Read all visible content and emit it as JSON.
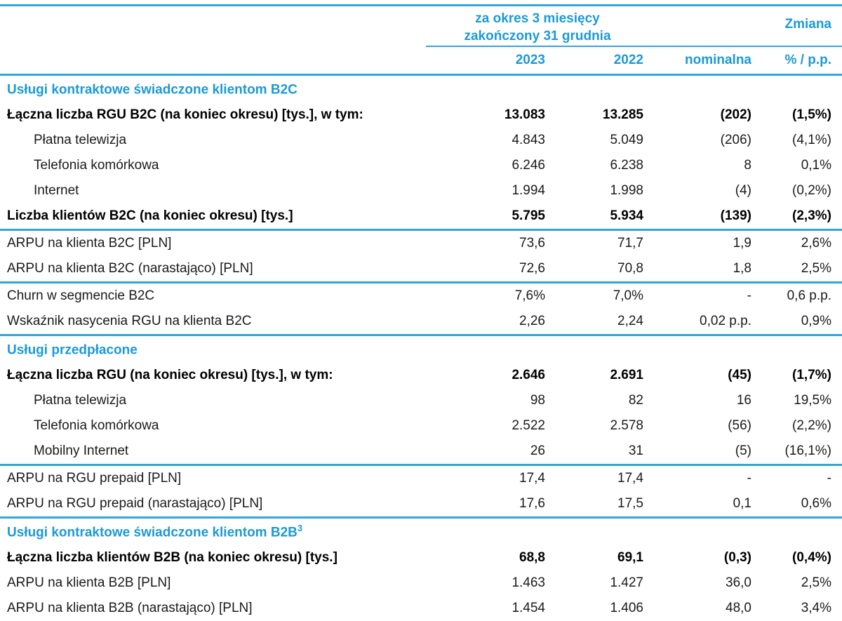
{
  "colors": {
    "accent_blue_text": "#1b9ad7",
    "accent_blue_line": "#2fa6dd",
    "body_text": "#1a1a1a"
  },
  "table": {
    "period_line1": "za okres 3 miesięcy",
    "period_line2": "zakończony 31 grudnia",
    "change_header": "Zmiana",
    "columns": [
      "2023",
      "2022",
      "nominalna",
      "% / p.p."
    ],
    "blocks": [
      {
        "section_title": "Usługi kontraktowe świadczone klientom B2C",
        "title_sup": "",
        "rows": [
          {
            "label": "Łączna liczba RGU B2C (na koniec okresu) [tys.], w tym:",
            "style": "bold",
            "values": [
              "13.083",
              "13.285",
              "(202)",
              "(1,5%)"
            ]
          },
          {
            "label": "Płatna telewizja",
            "style": "indent",
            "values": [
              "4.843",
              "5.049",
              "(206)",
              "(4,1%)"
            ]
          },
          {
            "label": "Telefonia komórkowa",
            "style": "indent",
            "values": [
              "6.246",
              "6.238",
              "8",
              "0,1%"
            ]
          },
          {
            "label": "Internet",
            "style": "indent",
            "values": [
              "1.994",
              "1.998",
              "(4)",
              "(0,2%)"
            ]
          },
          {
            "label": "Liczba klientów B2C (na koniec okresu) [tys.]",
            "style": "bold",
            "values": [
              "5.795",
              "5.934",
              "(139)",
              "(2,3%)"
            ]
          }
        ]
      },
      {
        "section_title": "",
        "title_sup": "",
        "rows": [
          {
            "label": "ARPU na klienta B2C [PLN]",
            "style": "",
            "values": [
              "73,6",
              "71,7",
              "1,9",
              "2,6%"
            ]
          },
          {
            "label": "ARPU na klienta B2C (narastająco) [PLN]",
            "style": "",
            "values": [
              "72,6",
              "70,8",
              "1,8",
              "2,5%"
            ]
          }
        ]
      },
      {
        "section_title": "",
        "title_sup": "",
        "rows": [
          {
            "label": "Churn w segmencie B2C",
            "style": "",
            "values": [
              "7,6%",
              "7,0%",
              "-",
              "0,6 p.p."
            ]
          },
          {
            "label": "Wskaźnik nasycenia RGU na klienta B2C",
            "style": "",
            "values": [
              "2,26",
              "2,24",
              "0,02 p.p.",
              "0,9%"
            ]
          }
        ]
      },
      {
        "section_title": "Usługi przedpłacone",
        "title_sup": "",
        "rows": [
          {
            "label": "Łączna liczba RGU (na koniec okresu) [tys.], w tym:",
            "style": "bold",
            "values": [
              "2.646",
              "2.691",
              "(45)",
              "(1,7%)"
            ]
          },
          {
            "label": "Płatna telewizja",
            "style": "indent",
            "values": [
              "98",
              "82",
              "16",
              "19,5%"
            ]
          },
          {
            "label": "Telefonia komórkowa",
            "style": "indent",
            "values": [
              "2.522",
              "2.578",
              "(56)",
              "(2,2%)"
            ]
          },
          {
            "label": "Mobilny Internet",
            "style": "indent",
            "values": [
              "26",
              "31",
              "(5)",
              "(16,1%)"
            ]
          }
        ]
      },
      {
        "section_title": "",
        "title_sup": "",
        "rows": [
          {
            "label": "ARPU na RGU prepaid [PLN]",
            "style": "",
            "values": [
              "17,4",
              "17,4",
              "-",
              "-"
            ]
          },
          {
            "label": "ARPU na RGU prepaid (narastająco) [PLN]",
            "style": "",
            "values": [
              "17,6",
              "17,5",
              "0,1",
              "0,6%"
            ]
          }
        ]
      },
      {
        "section_title": "Usługi kontraktowe świadczone klientom B2B",
        "title_sup": "3",
        "rows": [
          {
            "label": "Łączna liczba klientów B2B (na koniec okresu) [tys.]",
            "style": "bold",
            "values": [
              "68,8",
              "69,1",
              "(0,3)",
              "(0,4%)"
            ]
          },
          {
            "label": "ARPU na klienta B2B [PLN]",
            "style": "",
            "values": [
              "1.463",
              "1.427",
              "36,0",
              "2,5%"
            ]
          },
          {
            "label": "ARPU na klienta B2B (narastająco) [PLN]",
            "style": "",
            "values": [
              "1.454",
              "1.406",
              "48,0",
              "3,4%"
            ]
          }
        ]
      }
    ]
  }
}
